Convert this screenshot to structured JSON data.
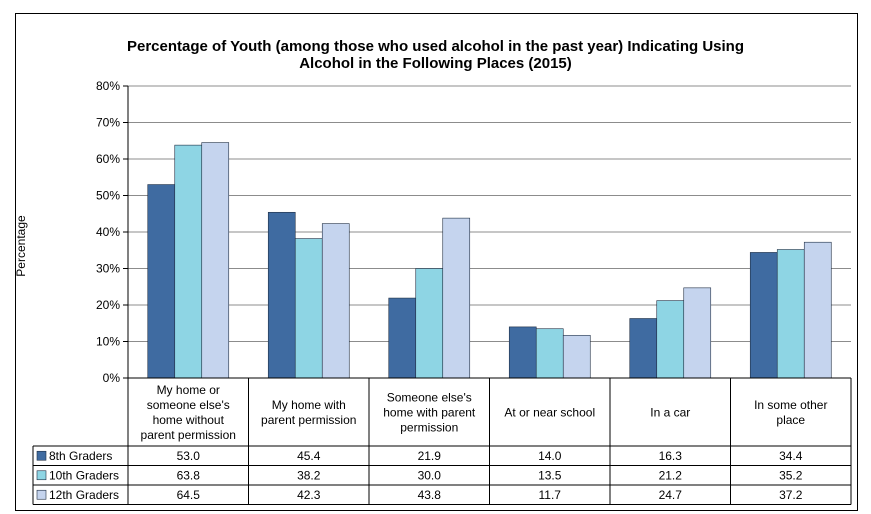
{
  "chart_data": {
    "type": "bar",
    "title_line1": "Percentage of Youth (among those who used alcohol in the past year) Indicating Using",
    "title_line2": "Alcohol in the Following Places (2015)",
    "ylabel": "Percentage",
    "xlabel": "",
    "ylim": [
      0,
      80
    ],
    "yticks": [
      "0%",
      "10%",
      "20%",
      "30%",
      "40%",
      "50%",
      "60%",
      "70%",
      "80%"
    ],
    "grid": true,
    "categories": [
      [
        "My home or",
        "someone else's",
        "home without",
        "parent permission"
      ],
      [
        "My home with",
        "parent permission"
      ],
      [
        "Someone else's",
        "home with parent",
        "permission"
      ],
      [
        "At or near school"
      ],
      [
        "In a car"
      ],
      [
        "In some other",
        "place"
      ]
    ],
    "series": [
      {
        "name": "8th Graders",
        "color": "#3f6ba1",
        "values": [
          53.0,
          45.4,
          21.9,
          14.0,
          16.3,
          34.4
        ],
        "labels": [
          "53.0",
          "45.4",
          "21.9",
          "14.0",
          "16.3",
          "34.4"
        ]
      },
      {
        "name": "10th Graders",
        "color": "#8ed5e4",
        "values": [
          63.8,
          38.2,
          30.0,
          13.5,
          21.2,
          35.2
        ],
        "labels": [
          "63.8",
          "38.2",
          "30.0",
          "13.5",
          "21.2",
          "35.2"
        ]
      },
      {
        "name": "12th Graders",
        "color": "#c5d4ee",
        "values": [
          64.5,
          42.3,
          43.8,
          11.7,
          24.7,
          37.2
        ],
        "labels": [
          "64.5",
          "42.3",
          "43.8",
          "11.7",
          "24.7",
          "37.2"
        ]
      }
    ]
  }
}
